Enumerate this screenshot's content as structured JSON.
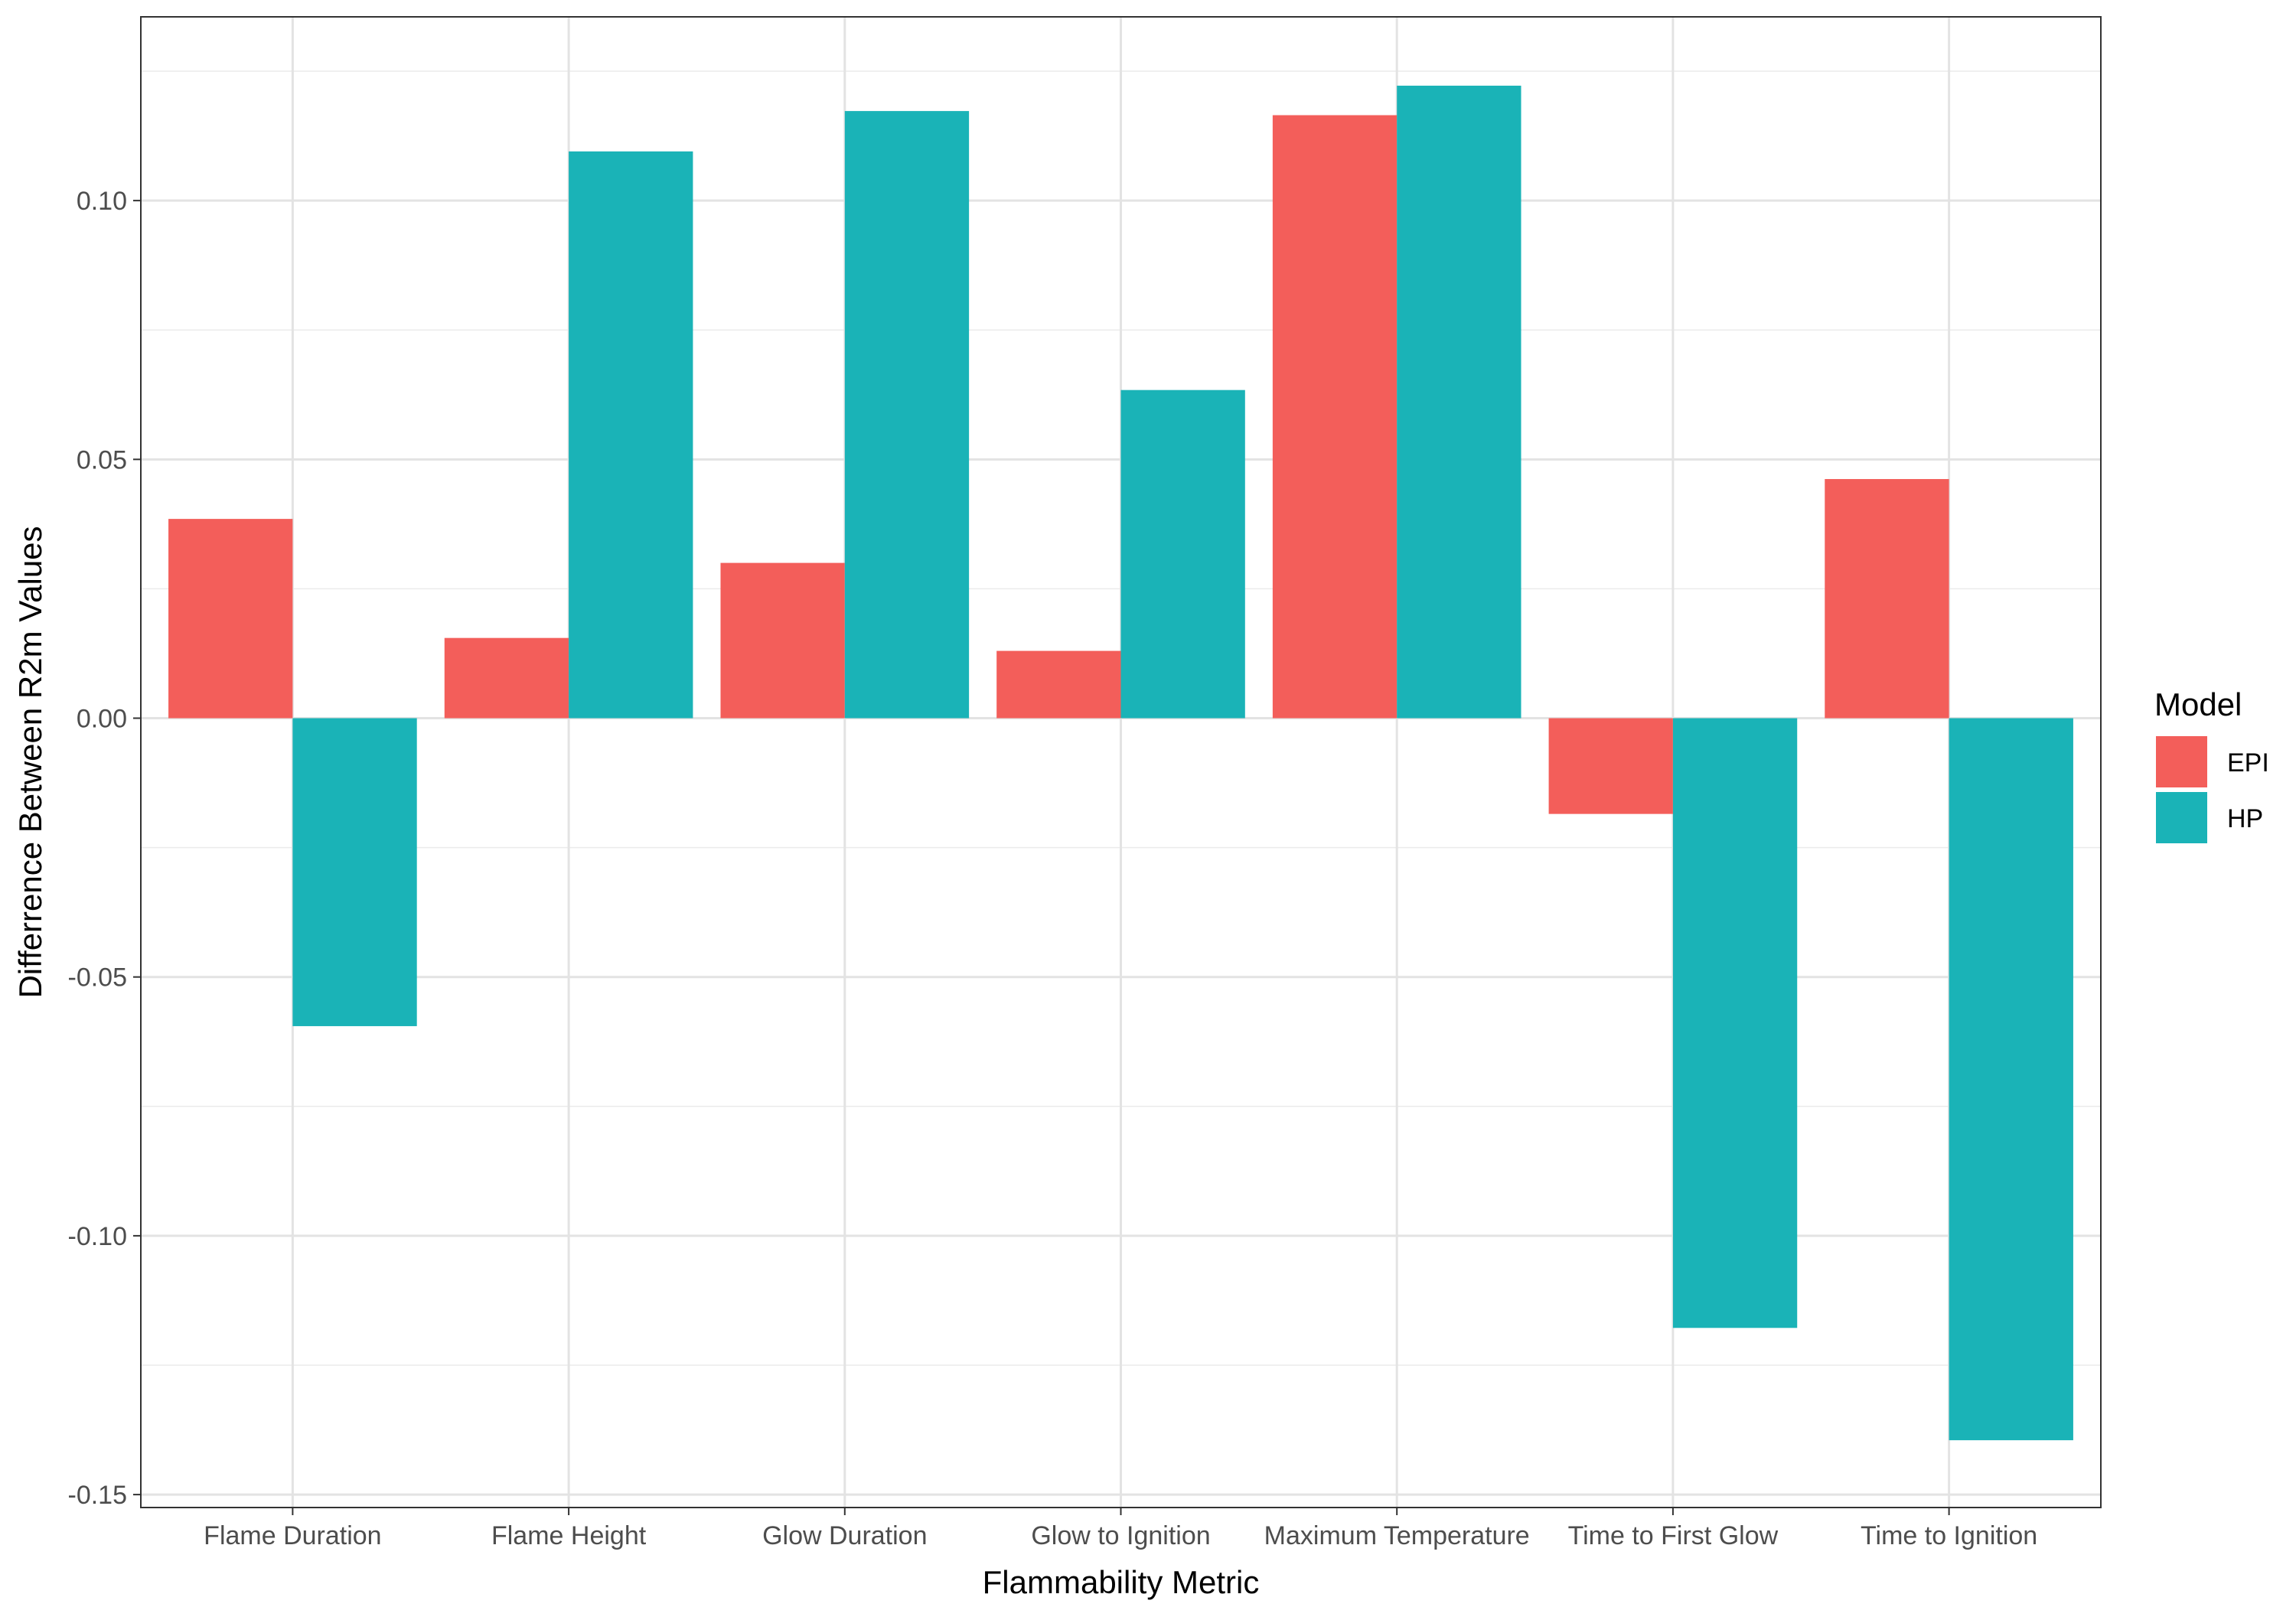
{
  "chart_data": {
    "type": "bar",
    "title": "",
    "xlabel": "Flammability Metric",
    "ylabel": "Differrence Between R2m Values",
    "categories": [
      "Flame Duration",
      "Flame Height",
      "Glow Duration",
      "Glow to Ignition",
      "Maximum Temperature",
      "Time to First Glow",
      "Time to Ignition"
    ],
    "series": [
      {
        "name": "EPI",
        "color": "#F35E5A",
        "values": [
          0.0385,
          0.0155,
          0.03,
          0.013,
          0.1165,
          -0.0185,
          0.0462
        ]
      },
      {
        "name": "HP",
        "color": "#1AB3B7",
        "values": [
          -0.0595,
          0.1095,
          0.1173,
          0.0634,
          0.1222,
          -0.1178,
          -0.1395
        ]
      }
    ],
    "ylim": [
      -0.1525,
      0.1355
    ],
    "y_ticks": [
      -0.15,
      -0.1,
      -0.05,
      0.0,
      0.05,
      0.1
    ],
    "y_tick_labels": [
      "-0.15",
      "-0.10",
      "-0.05",
      "0.00",
      "0.05",
      "0.10"
    ],
    "grid": true,
    "legend": {
      "title": "Model",
      "position": "right"
    }
  }
}
